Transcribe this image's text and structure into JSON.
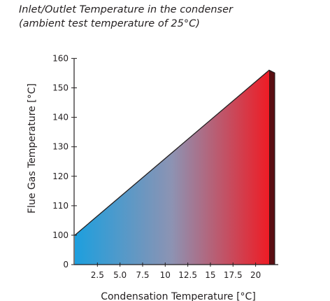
{
  "title": "Inlet/Outlet Temperature in the condenser",
  "subtitle": "(ambient test temperature of 25°C)",
  "chart_data": {
    "type": "area",
    "title": "Inlet/Outlet Temperature in the condenser",
    "subtitle": "(ambient test temperature of 25°C)",
    "xlabel": "Condensation Temperature [°C]",
    "ylabel": "Flue Gas Temperature [°C]",
    "x_ticks": [
      "2.5",
      "5.0",
      "7.5",
      "10",
      "12.5",
      "15",
      "17.5",
      "20"
    ],
    "y_ticks": [
      "0",
      "100",
      "110",
      "120",
      "130",
      "140",
      "150",
      "160"
    ],
    "xlim": [
      0,
      21.5
    ],
    "ylim_axis_breaks": "0 then 100 to 160",
    "series": [
      {
        "x": [
          0,
          21.5
        ],
        "y": [
          100,
          156
        ]
      }
    ],
    "fill_gradient": [
      "#1d9fde",
      "#ee1c25"
    ],
    "grid": false
  }
}
